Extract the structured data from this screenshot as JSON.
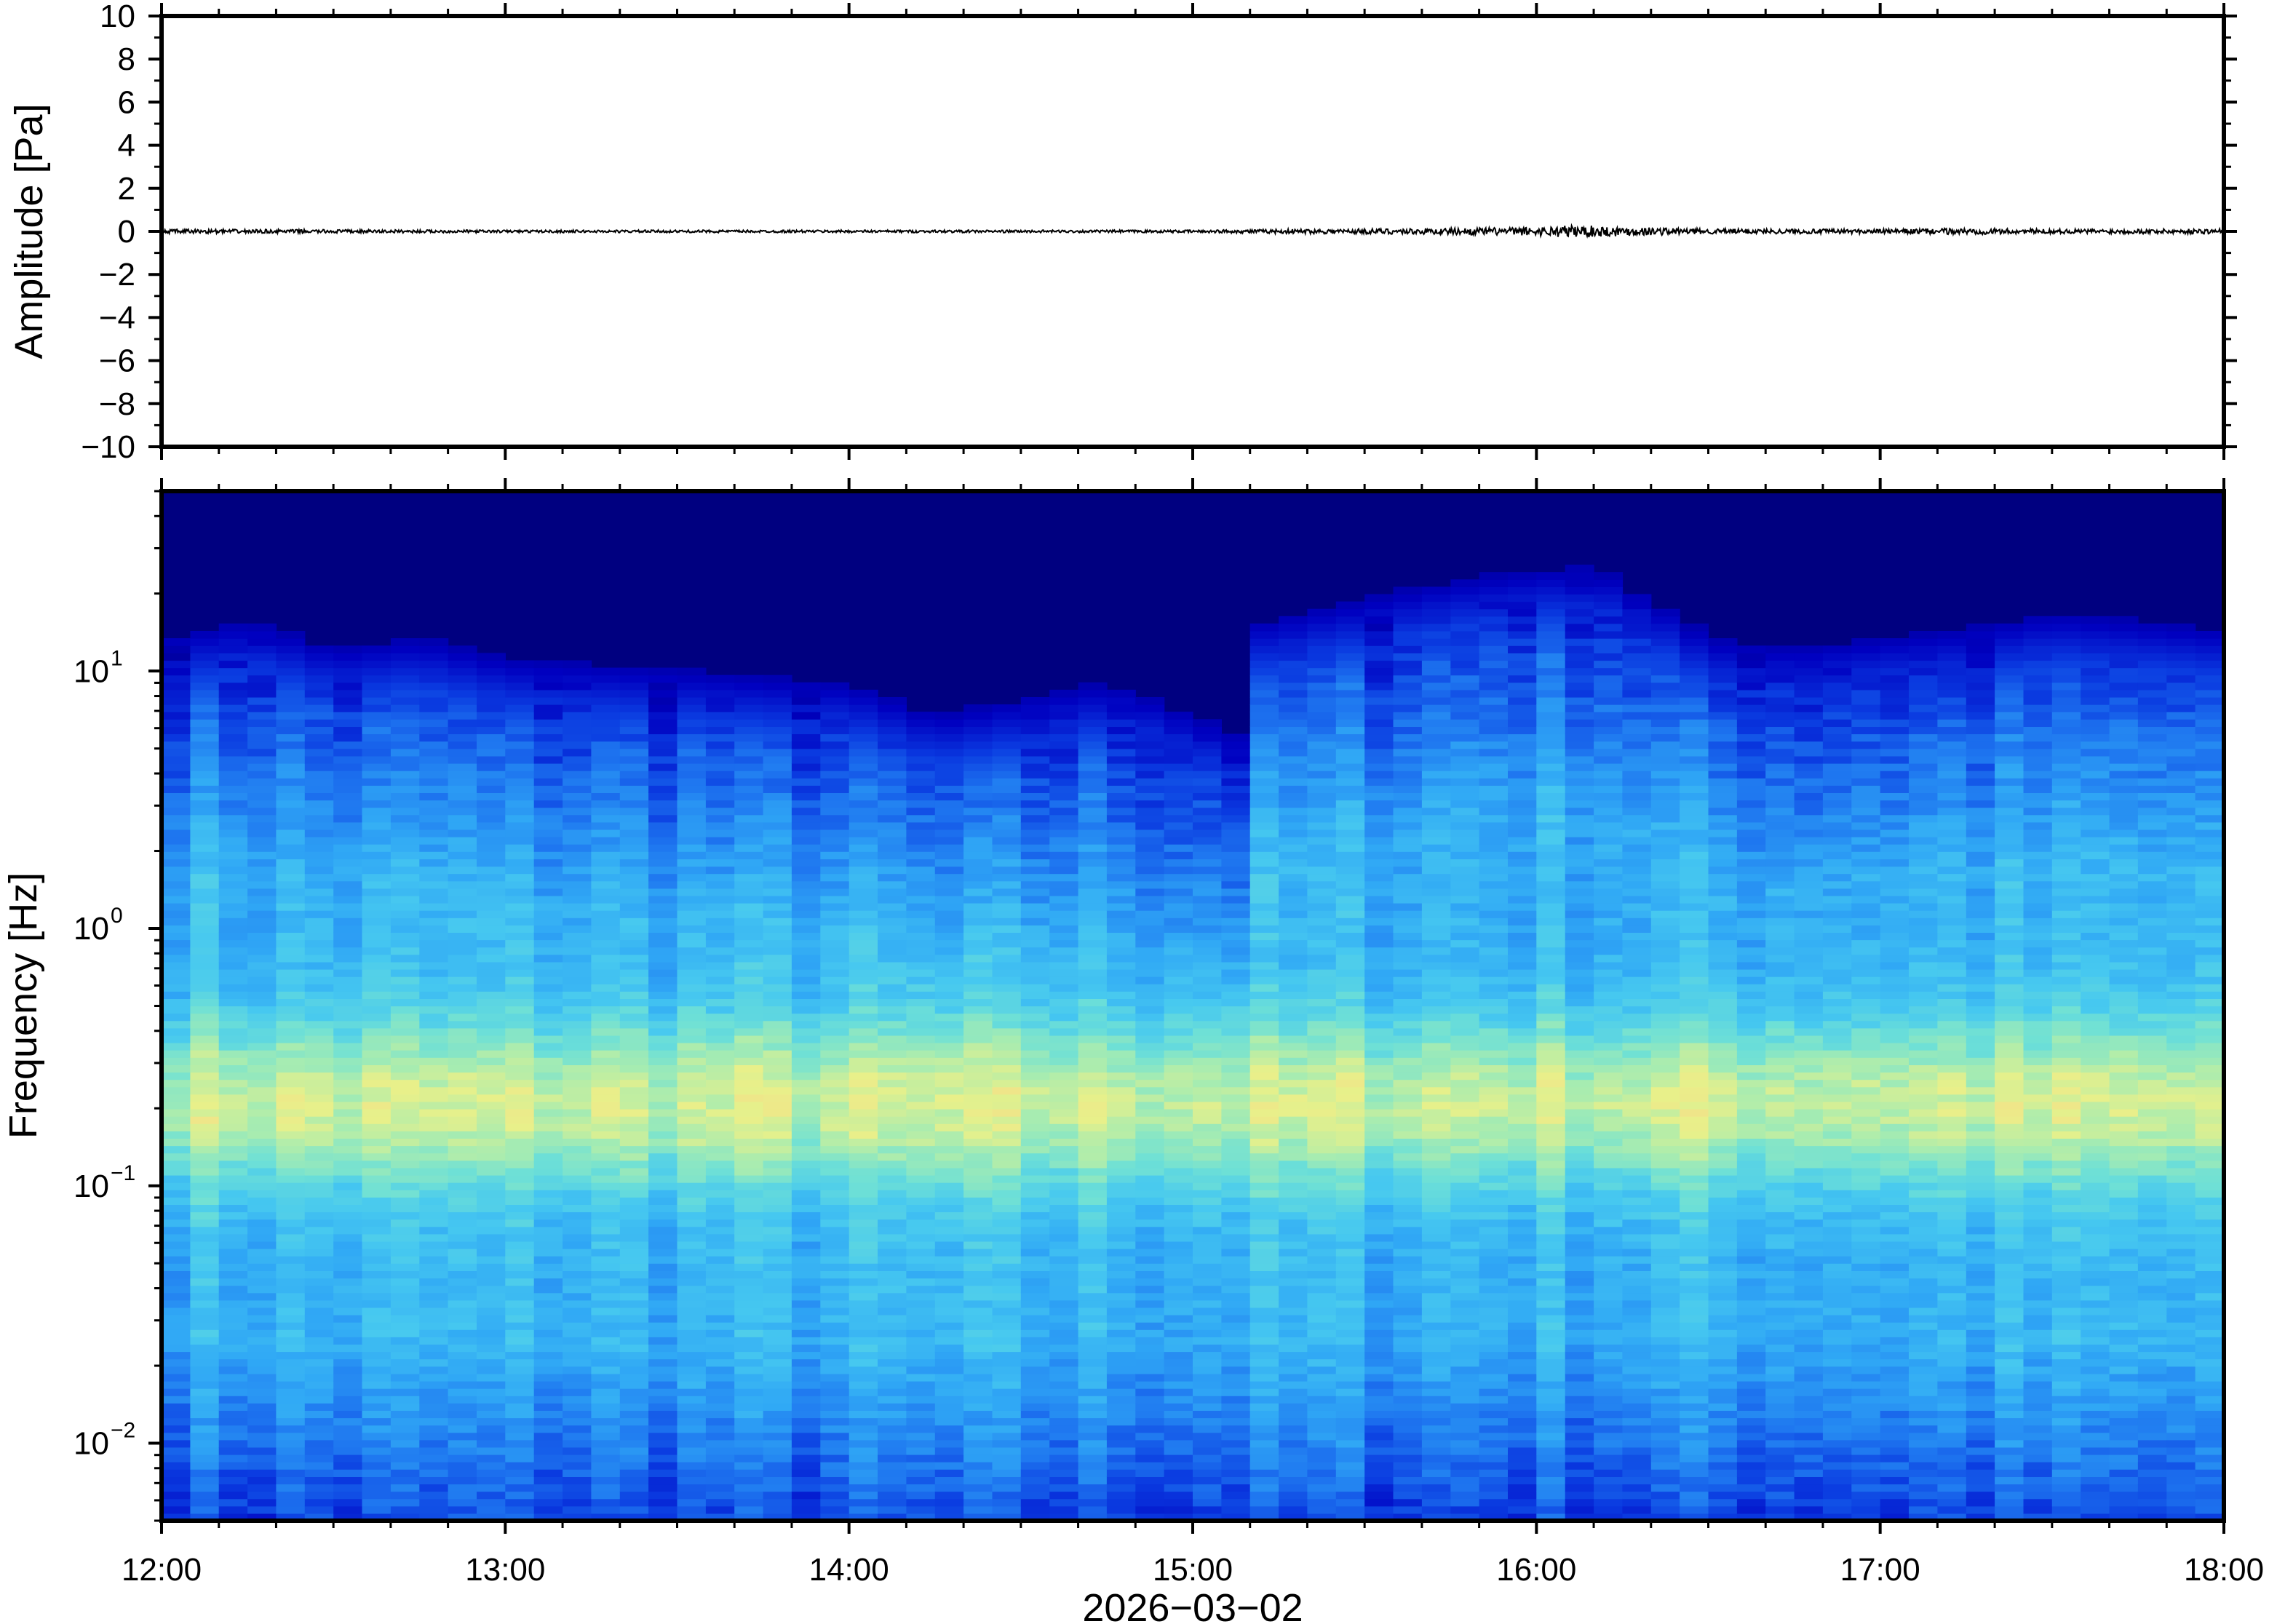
{
  "chart_data": [
    {
      "type": "line",
      "panel": "waveform",
      "ylabel": "Amplitude [Pa]",
      "ylim": [
        -10,
        10
      ],
      "yticks": [
        10,
        8,
        6,
        4,
        2,
        0,
        -2,
        -4,
        -6,
        -8,
        -10
      ],
      "ytick_labels": [
        "10",
        "8",
        "6",
        "4",
        "2",
        "0",
        "−2",
        "−4",
        "−6",
        "−8",
        "−10"
      ],
      "xlim": [
        "12:00",
        "18:00"
      ],
      "series": [
        {
          "color": "#000000",
          "x_hours": [
            12.0,
            12.5,
            13.0,
            13.5,
            14.0,
            14.5,
            15.0,
            15.25,
            15.5,
            15.75,
            16.0,
            16.1,
            16.25,
            16.5,
            17.0,
            17.25,
            17.5,
            18.0
          ],
          "envelope_pa": [
            0.1,
            0.08,
            0.06,
            0.06,
            0.06,
            0.06,
            0.06,
            0.1,
            0.12,
            0.15,
            0.2,
            0.3,
            0.22,
            0.12,
            0.1,
            0.15,
            0.1,
            0.12
          ]
        }
      ],
      "grid": false
    },
    {
      "type": "heatmap",
      "panel": "spectrogram",
      "ylabel": "Frequency [Hz]",
      "xlabel": "2026−03−02",
      "yscale": "log",
      "ylim": [
        0.005,
        50
      ],
      "yticks": [
        0.01,
        0.1,
        1,
        10
      ],
      "ytick_labels": [
        {
          "base": "10",
          "exp": "−2"
        },
        {
          "base": "10",
          "exp": "−1"
        },
        {
          "base": "10",
          "exp": "0"
        },
        {
          "base": "10",
          "exp": "1"
        }
      ],
      "xticks": [
        "12:00",
        "13:00",
        "14:00",
        "15:00",
        "16:00",
        "17:00",
        "18:00"
      ],
      "colormap": [
        "#000080",
        "#0000c0",
        "#0a3ae0",
        "#1f78f0",
        "#30a8f5",
        "#46c8f0",
        "#6ee0d6",
        "#a8ecb0",
        "#e8f08a",
        "#f8d888"
      ],
      "upper_noise_edge_hz": {
        "x_hours": [
          12.0,
          12.25,
          12.5,
          12.75,
          13.0,
          13.5,
          14.0,
          14.25,
          14.5,
          14.75,
          15.0,
          15.15,
          15.2,
          15.3,
          15.5,
          15.75,
          16.0,
          16.15,
          16.3,
          16.5,
          16.75,
          17.0,
          17.25,
          17.5,
          17.75,
          18.0
        ],
        "hz": [
          12,
          14,
          11,
          12,
          10,
          9,
          8,
          6,
          7,
          8,
          6,
          5,
          14,
          15,
          17,
          20,
          22,
          23,
          18,
          12,
          11,
          12,
          13,
          15,
          14,
          13
        ]
      },
      "grid": false
    }
  ]
}
